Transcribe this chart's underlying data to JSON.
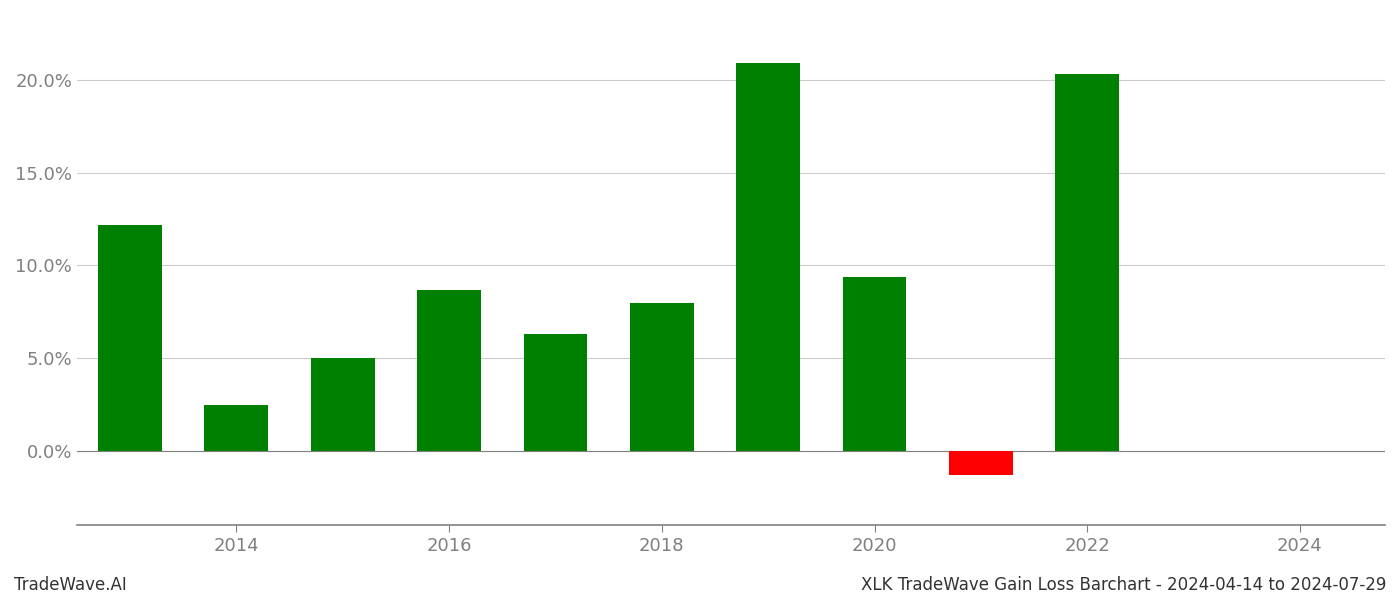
{
  "years": [
    2013,
    2014,
    2015,
    2016,
    2017,
    2018,
    2019,
    2020,
    2021,
    2022,
    2023
  ],
  "values": [
    0.122,
    0.025,
    0.05,
    0.087,
    0.063,
    0.08,
    0.209,
    0.094,
    -0.013,
    0.203,
    0.0
  ],
  "colors": [
    "#008000",
    "#008000",
    "#008000",
    "#008000",
    "#008000",
    "#008000",
    "#008000",
    "#008000",
    "#ff0000",
    "#008000",
    "#008000"
  ],
  "title": "XLK TradeWave Gain Loss Barchart - 2024-04-14 to 2024-07-29",
  "footer_left": "TradeWave.AI",
  "ylim": [
    -0.04,
    0.235
  ],
  "yticks": [
    0.0,
    0.05,
    0.1,
    0.15,
    0.2
  ],
  "xtick_years": [
    2014,
    2016,
    2018,
    2020,
    2022,
    2024
  ],
  "bar_width": 0.6,
  "grid_color": "#cccccc",
  "axis_color": "#808080",
  "tick_label_color": "#808080",
  "background_color": "#ffffff",
  "xlim": [
    2012.5,
    2024.8
  ]
}
